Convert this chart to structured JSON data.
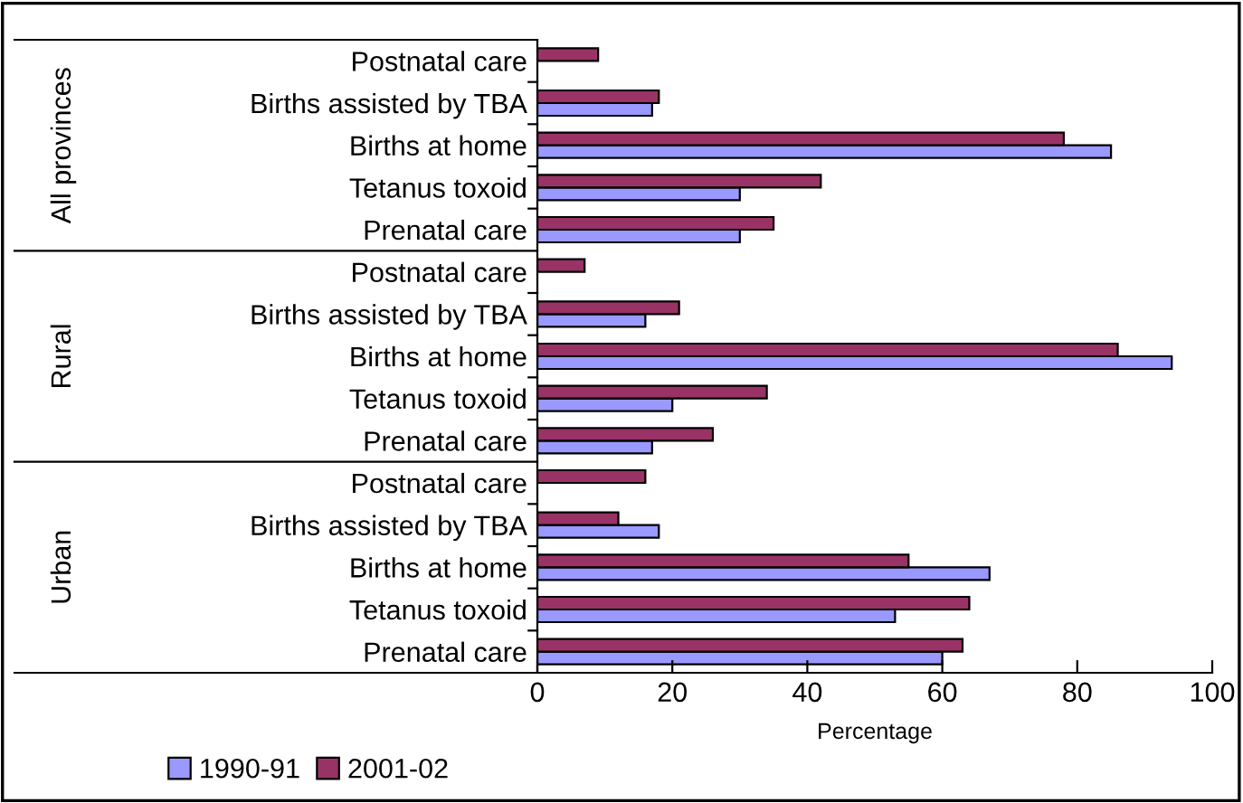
{
  "chart_data": {
    "type": "bar",
    "orientation": "horizontal",
    "xlabel": "Percentage",
    "categories": [
      "Postnatal care",
      "Births assisted by TBA",
      "Births at home",
      "Tetanus toxoid",
      "Prenatal care",
      "Postnatal care",
      "Births assisted by TBA",
      "Births at home",
      "Tetanus toxoid",
      "Prenatal care",
      "Postnatal care",
      "Births assisted by TBA",
      "Births at home",
      "Tetanus toxoid",
      "Prenatal care"
    ],
    "series": [
      {
        "name": "1990-91",
        "color": "#9999ff",
        "values": [
          null,
          17,
          85,
          30,
          30,
          null,
          16,
          94,
          20,
          17,
          null,
          18,
          67,
          53,
          60
        ]
      },
      {
        "name": "2001-02",
        "color": "#993366",
        "values": [
          9,
          18,
          78,
          42,
          35,
          7,
          21,
          86,
          34,
          26,
          16,
          12,
          55,
          64,
          63
        ]
      }
    ],
    "annotations": [
      "All provinces",
      "Rural",
      "Urban"
    ],
    "xlim": [
      0,
      100
    ],
    "xticks": [
      0,
      20,
      40,
      60,
      80,
      100
    ],
    "grid": false,
    "legend": "bottom left"
  }
}
